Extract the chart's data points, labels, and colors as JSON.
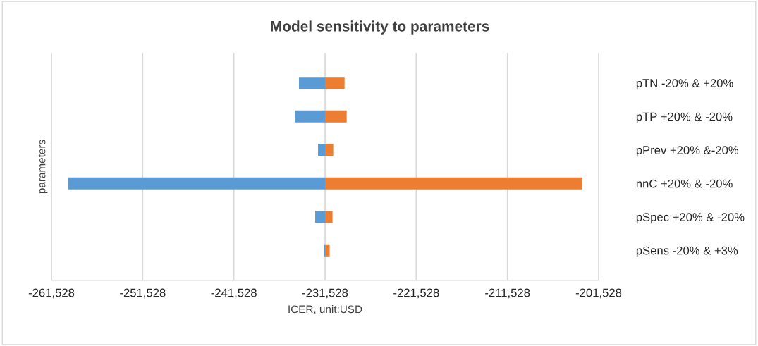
{
  "chart_data": {
    "type": "bar",
    "orientation": "horizontal",
    "title": "Model sensitivity to parameters",
    "xlabel": "ICER, unit:USD",
    "ylabel": "parameters",
    "categories": [
      "pTN -20% & +20%",
      "pTP +20% & -20%",
      "pPrev +20% &-20%",
      "nnC +20% & -20%",
      "pSpec +20% & -20%",
      "pSens -20% & +3%"
    ],
    "series": [
      {
        "color": "#5b9bd5",
        "values": [
          -2860,
          -3300,
          -770,
          -28180,
          -1080,
          -80
        ],
        "base": [
          -231528,
          -231528,
          -231528,
          -231528,
          -231528,
          -231528
        ]
      },
      {
        "color": "#ed7d31",
        "values": [
          2140,
          2370,
          900,
          28190,
          820,
          510
        ],
        "base": [
          -231528,
          -231528,
          -231528,
          -231528,
          -231528,
          -231528
        ]
      }
    ],
    "xlim": [
      -261528,
      -201528
    ],
    "xticks": [
      {
        "value": -261528,
        "label": "-261,528"
      },
      {
        "value": -251528,
        "label": "-251,528"
      },
      {
        "value": -241528,
        "label": "-241,528"
      },
      {
        "value": -231528,
        "label": "-231,528"
      },
      {
        "value": -221528,
        "label": "-221,528"
      },
      {
        "value": -211528,
        "label": "-211,528"
      },
      {
        "value": -201528,
        "label": "-201,528"
      }
    ],
    "grid": "x",
    "legend": false
  }
}
